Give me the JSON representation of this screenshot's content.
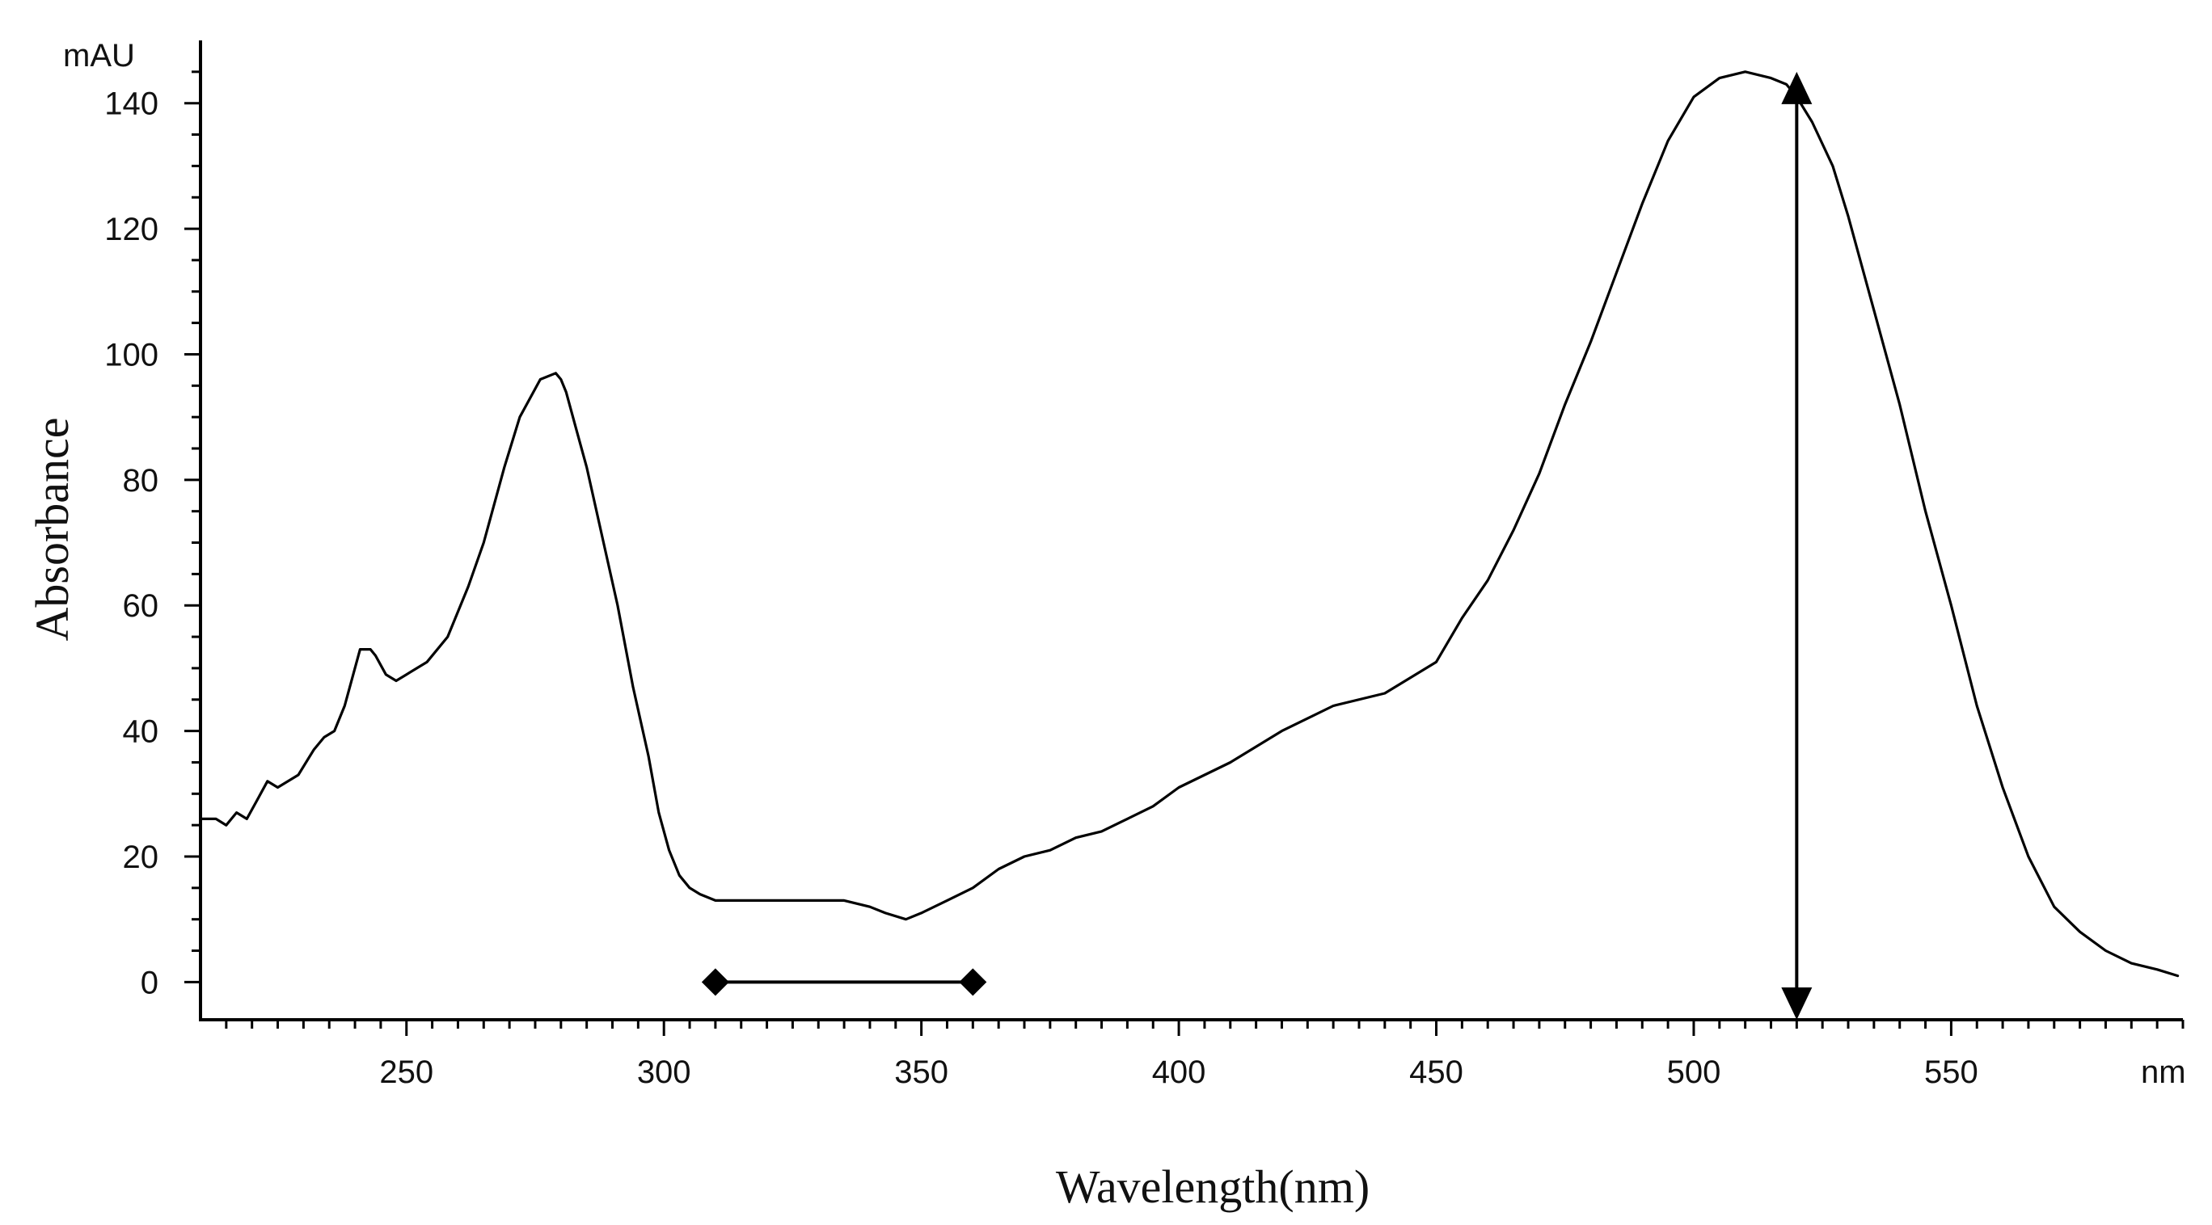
{
  "chart_data": {
    "type": "line",
    "title": "",
    "xlabel": "Wavelength(nm)",
    "ylabel": "Absorbance",
    "x_unit": "nm",
    "y_unit": "mAU",
    "xlim": [
      210,
      595
    ],
    "ylim": [
      -6,
      150
    ],
    "x_ticks": [
      250,
      300,
      350,
      400,
      450,
      500,
      550
    ],
    "y_ticks": [
      0,
      20,
      40,
      60,
      80,
      100,
      120,
      140
    ],
    "grid": false,
    "series": [
      {
        "x": [
          210,
          213,
          215,
          217,
          219,
          221,
          223,
          225,
          229,
          232,
          234,
          236,
          238,
          241,
          243,
          244,
          246,
          248,
          250,
          254,
          258,
          262,
          265,
          269,
          272,
          276,
          279,
          280,
          281,
          283,
          285,
          288,
          291,
          294,
          297,
          299,
          301,
          303,
          305,
          307,
          310,
          312,
          316,
          320,
          330,
          335,
          340,
          343,
          347,
          350,
          355,
          360,
          365,
          370,
          375,
          380,
          385,
          390,
          395,
          400,
          410,
          420,
          430,
          440,
          450,
          455,
          460,
          465,
          470,
          475,
          480,
          485,
          490,
          495,
          500,
          505,
          510,
          515,
          518,
          520,
          523,
          527,
          530,
          535,
          540,
          545,
          550,
          555,
          560,
          565,
          570,
          575,
          580,
          585,
          590,
          594
        ],
        "y": [
          26,
          26,
          25,
          27,
          26,
          29,
          32,
          31,
          33,
          37,
          39,
          40,
          44,
          53,
          53,
          52,
          49,
          48,
          49,
          51,
          55,
          63,
          70,
          82,
          90,
          96,
          97,
          96,
          94,
          88,
          82,
          71,
          60,
          47,
          36,
          27,
          21,
          17,
          15,
          14,
          13,
          13,
          13,
          13,
          13,
          13,
          12,
          11,
          10,
          11,
          13,
          15,
          18,
          20,
          21,
          23,
          24,
          26,
          28,
          31,
          35,
          40,
          44,
          46,
          51,
          58,
          64,
          72,
          81,
          92,
          102,
          113,
          124,
          134,
          141,
          144,
          145,
          144,
          143,
          141,
          137,
          130,
          122,
          107,
          92,
          75,
          60,
          44,
          31,
          20,
          12,
          8,
          5,
          3,
          2,
          1
        ]
      }
    ],
    "annotations": [
      {
        "type": "horizontal-range-bar",
        "x_start": 310,
        "x_end": 360,
        "y": 0
      },
      {
        "type": "vertical-double-arrow",
        "x": 520,
        "y_start": -6,
        "y_end": 145
      }
    ]
  }
}
